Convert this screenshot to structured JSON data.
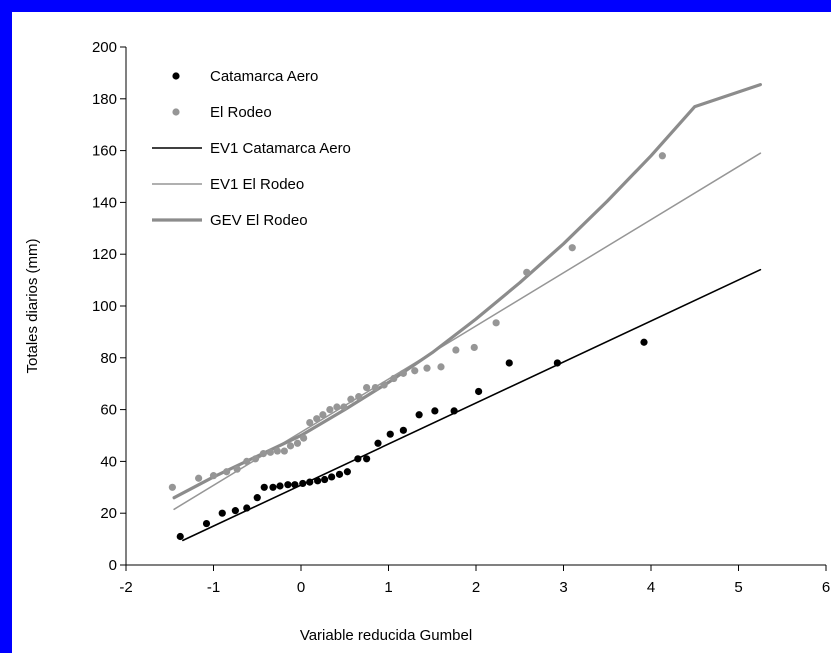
{
  "chart_data": {
    "type": "scatter",
    "title": "",
    "xlabel": "Variable reducida Gumbel",
    "ylabel": "Totales diarios (mm)",
    "xlim": [
      -2,
      6
    ],
    "ylim": [
      0,
      200
    ],
    "x_ticks": [
      "-2",
      "-1",
      "0",
      "1",
      "2",
      "3",
      "4",
      "5",
      "6"
    ],
    "y_ticks": [
      "0",
      "20",
      "40",
      "60",
      "80",
      "100",
      "120",
      "140",
      "160",
      "180",
      "200"
    ],
    "grid": false,
    "legend_position": "top-left",
    "series": [
      {
        "name": "Catamarca Aero",
        "kind": "points",
        "color": "#000000",
        "points": [
          [
            -1.38,
            11
          ],
          [
            -1.08,
            16
          ],
          [
            -0.9,
            20
          ],
          [
            -0.75,
            21
          ],
          [
            -0.62,
            22
          ],
          [
            -0.5,
            26
          ],
          [
            -0.42,
            30
          ],
          [
            -0.32,
            30
          ],
          [
            -0.24,
            30.5
          ],
          [
            -0.15,
            31
          ],
          [
            -0.07,
            31
          ],
          [
            0.02,
            31.5
          ],
          [
            0.1,
            32
          ],
          [
            0.19,
            32.5
          ],
          [
            0.27,
            33
          ],
          [
            0.35,
            34
          ],
          [
            0.44,
            35
          ],
          [
            0.53,
            36
          ],
          [
            0.65,
            41
          ],
          [
            0.75,
            41
          ],
          [
            0.88,
            47
          ],
          [
            1.02,
            50.5
          ],
          [
            1.17,
            52
          ],
          [
            1.35,
            58
          ],
          [
            1.53,
            59.5
          ],
          [
            1.75,
            59.5
          ],
          [
            2.03,
            67
          ],
          [
            2.38,
            78
          ],
          [
            2.93,
            78
          ],
          [
            3.92,
            86
          ]
        ]
      },
      {
        "name": "El Rodeo",
        "kind": "points",
        "color": "#969696",
        "points": [
          [
            -1.47,
            30
          ],
          [
            -1.17,
            33.5
          ],
          [
            -1.0,
            34.5
          ],
          [
            -0.85,
            36
          ],
          [
            -0.73,
            37
          ],
          [
            -0.62,
            40
          ],
          [
            -0.52,
            41
          ],
          [
            -0.43,
            43
          ],
          [
            -0.35,
            43.5
          ],
          [
            -0.27,
            44
          ],
          [
            -0.19,
            44
          ],
          [
            -0.12,
            46
          ],
          [
            -0.04,
            47
          ],
          [
            0.03,
            49
          ],
          [
            0.1,
            55
          ],
          [
            0.18,
            56.5
          ],
          [
            0.25,
            58
          ],
          [
            0.33,
            60
          ],
          [
            0.41,
            61
          ],
          [
            0.49,
            61
          ],
          [
            0.57,
            64
          ],
          [
            0.66,
            65
          ],
          [
            0.75,
            68.5
          ],
          [
            0.85,
            68.5
          ],
          [
            0.95,
            69.5
          ],
          [
            1.06,
            72
          ],
          [
            1.17,
            74
          ],
          [
            1.3,
            75
          ],
          [
            1.44,
            76
          ],
          [
            1.6,
            76.5
          ],
          [
            1.77,
            83
          ],
          [
            1.98,
            84
          ],
          [
            2.23,
            93.5
          ],
          [
            2.58,
            113
          ],
          [
            3.1,
            122.5
          ],
          [
            4.13,
            158
          ]
        ]
      },
      {
        "name": "EV1 Catamarca Aero",
        "kind": "line",
        "color": "#000000",
        "width": 1.6,
        "points": [
          [
            -1.35,
            9.5
          ],
          [
            5.25,
            114
          ]
        ]
      },
      {
        "name": "EV1 El Rodeo",
        "kind": "line",
        "color": "#969696",
        "width": 1.5,
        "points": [
          [
            -1.45,
            21.5
          ],
          [
            5.25,
            159
          ]
        ]
      },
      {
        "name": "GEV El Rodeo",
        "kind": "line",
        "color": "#8c8c8c",
        "width": 3.2,
        "points": [
          [
            -1.45,
            26
          ],
          [
            -1.0,
            34
          ],
          [
            -0.5,
            42
          ],
          [
            0.0,
            50
          ],
          [
            0.5,
            60
          ],
          [
            1.0,
            70.5
          ],
          [
            1.5,
            82
          ],
          [
            2.0,
            95
          ],
          [
            2.5,
            109
          ],
          [
            3.0,
            124
          ],
          [
            3.5,
            140.5
          ],
          [
            4.0,
            158
          ],
          [
            4.5,
            177
          ],
          [
            5.25,
            185.5
          ]
        ]
      }
    ]
  }
}
